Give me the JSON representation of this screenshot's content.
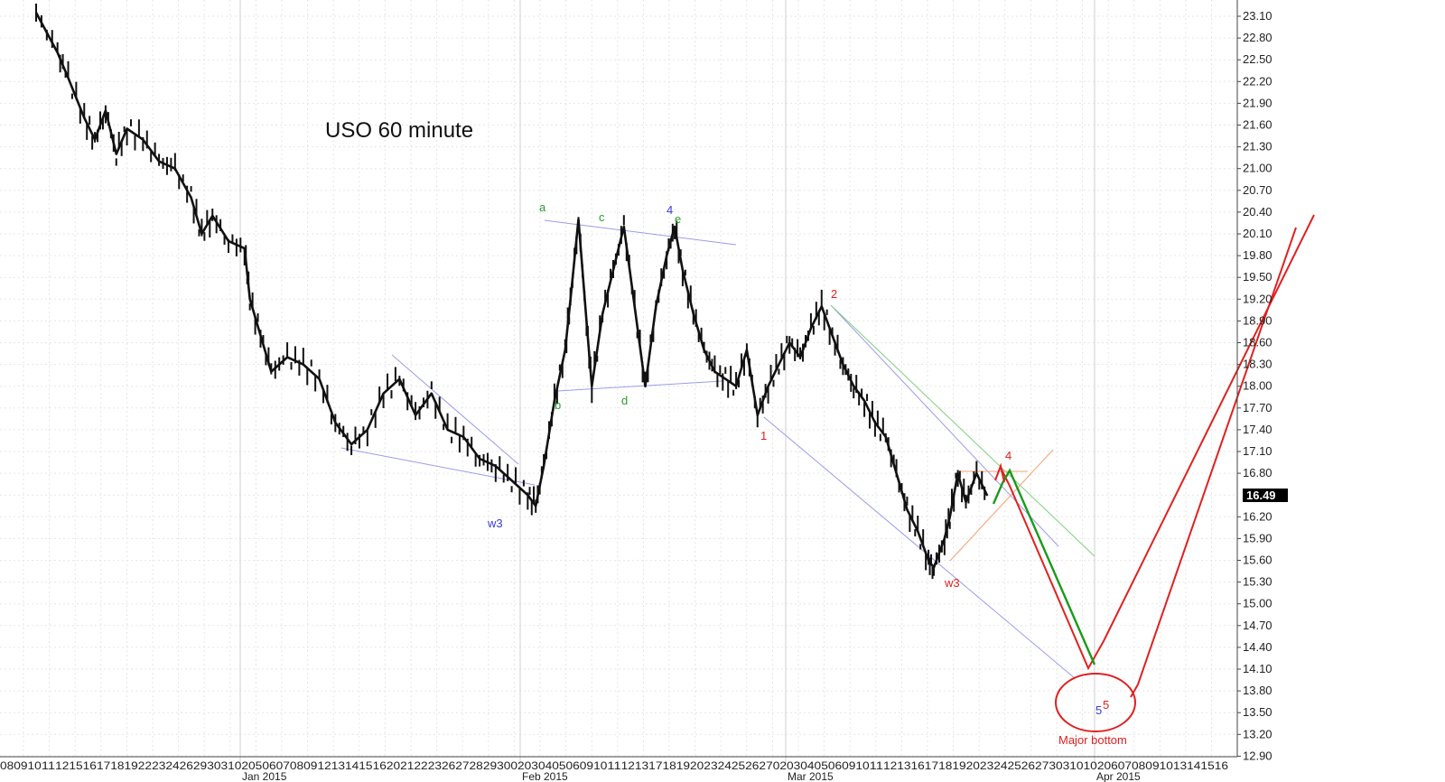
{
  "chart_data": {
    "type": "line",
    "title": "USO 60 minute",
    "last_price": "16.49",
    "y_ticks": [
      "23.10",
      "22.80",
      "22.50",
      "22.20",
      "21.90",
      "21.60",
      "21.30",
      "21.00",
      "20.70",
      "20.40",
      "20.10",
      "19.80",
      "19.50",
      "19.20",
      "18.90",
      "18.60",
      "18.30",
      "18.00",
      "17.70",
      "17.40",
      "17.10",
      "16.80",
      "16.49",
      "16.20",
      "15.90",
      "15.60",
      "15.30",
      "15.00",
      "14.70",
      "14.40",
      "14.10",
      "13.80",
      "13.50",
      "13.20",
      "12.90"
    ],
    "ylim": [
      12.9,
      23.3
    ],
    "x_tick_string": "0809101112151617181922232426293031020506070809121314151620212223262728293002030405060910111213171819202324252627020304050609101112131617181920232425262730310102060708091013141516",
    "x_day_labels": [
      "08",
      "09",
      "10",
      "11",
      "12",
      "15",
      "16",
      "17",
      "18",
      "19",
      "22",
      "23",
      "24",
      "26",
      "29",
      "30",
      "31",
      "02",
      "05",
      "06",
      "07",
      "08",
      "09",
      "12",
      "13",
      "14",
      "15",
      "16",
      "20",
      "21",
      "22",
      "23",
      "26",
      "27",
      "28",
      "29",
      "30",
      "02",
      "03",
      "04",
      "05",
      "06",
      "09",
      "10",
      "11",
      "12",
      "13",
      "17",
      "18",
      "19",
      "20",
      "23",
      "24",
      "25",
      "26",
      "27",
      "02",
      "03",
      "04",
      "05",
      "06",
      "09",
      "10",
      "11",
      "12",
      "13",
      "16",
      "17",
      "18",
      "19",
      "20",
      "23",
      "24",
      "25",
      "26",
      "27",
      "30",
      "31",
      "01",
      "02",
      "06",
      "07",
      "08",
      "09",
      "10",
      "13",
      "14",
      "15",
      "16"
    ],
    "months": [
      "Jan 2015",
      "Feb 2015",
      "Mar 2015",
      "Apr 2015"
    ],
    "grid": true,
    "series": [
      {
        "type": "line",
        "values": [
          [
            0,
            23.15
          ],
          [
            8,
            22.6
          ],
          [
            12,
            22.25
          ],
          [
            18,
            21.7
          ],
          [
            22,
            21.4
          ],
          [
            26,
            21.8
          ],
          [
            30,
            21.2
          ],
          [
            34,
            21.55
          ],
          [
            40,
            21.4
          ],
          [
            46,
            21.1
          ],
          [
            52,
            21.0
          ],
          [
            58,
            20.6
          ],
          [
            62,
            20.1
          ],
          [
            66,
            20.35
          ],
          [
            72,
            20.0
          ],
          [
            78,
            19.9
          ],
          [
            80,
            19.2
          ],
          [
            84,
            18.7
          ],
          [
            88,
            18.2
          ],
          [
            94,
            18.4
          ],
          [
            100,
            18.3
          ],
          [
            106,
            18.1
          ],
          [
            112,
            17.5
          ],
          [
            118,
            17.2
          ],
          [
            124,
            17.4
          ],
          [
            130,
            17.9
          ],
          [
            136,
            18.1
          ],
          [
            142,
            17.6
          ],
          [
            148,
            17.9
          ],
          [
            154,
            17.4
          ],
          [
            160,
            17.3
          ],
          [
            166,
            17.0
          ],
          [
            172,
            16.9
          ],
          [
            178,
            16.7
          ],
          [
            184,
            16.5
          ],
          [
            187,
            16.35
          ],
          [
            190,
            16.9
          ],
          [
            194,
            17.8
          ],
          [
            198,
            18.5
          ],
          [
            200,
            19.2
          ],
          [
            203,
            20.3
          ],
          [
            206,
            18.9
          ],
          [
            208,
            18.0
          ],
          [
            212,
            19.0
          ],
          [
            216,
            19.6
          ],
          [
            220,
            20.2
          ],
          [
            224,
            19.1
          ],
          [
            228,
            18.0
          ],
          [
            232,
            19.1
          ],
          [
            236,
            19.8
          ],
          [
            239,
            20.2
          ],
          [
            242,
            19.6
          ],
          [
            246,
            19.0
          ],
          [
            250,
            18.5
          ],
          [
            254,
            18.2
          ],
          [
            258,
            18.1
          ],
          [
            262,
            18.0
          ],
          [
            266,
            18.5
          ],
          [
            270,
            17.6
          ],
          [
            274,
            18.0
          ],
          [
            278,
            18.3
          ],
          [
            282,
            18.6
          ],
          [
            286,
            18.4
          ],
          [
            290,
            18.8
          ],
          [
            294,
            19.1
          ],
          [
            298,
            18.7
          ],
          [
            302,
            18.3
          ],
          [
            306,
            18.0
          ],
          [
            310,
            17.8
          ],
          [
            314,
            17.5
          ],
          [
            318,
            17.3
          ],
          [
            322,
            16.8
          ],
          [
            326,
            16.3
          ],
          [
            330,
            16.0
          ],
          [
            334,
            15.6
          ],
          [
            336,
            15.5
          ],
          [
            340,
            15.9
          ],
          [
            342,
            16.2
          ],
          [
            345,
            16.8
          ],
          [
            348,
            16.4
          ],
          [
            352,
            16.8
          ],
          [
            356,
            16.49
          ]
        ]
      }
    ],
    "annotations": [
      {
        "label": "a",
        "color": "#2a9d2a"
      },
      {
        "label": "b",
        "color": "#2a9d2a"
      },
      {
        "label": "c",
        "color": "#2a9d2a"
      },
      {
        "label": "d",
        "color": "#2a9d2a"
      },
      {
        "label": "4",
        "color": "#3b3bd6"
      },
      {
        "label": "e",
        "color": "#2a9d2a"
      },
      {
        "label": "w3",
        "color": "#3b3bd6"
      },
      {
        "label": "1",
        "color": "#e02020"
      },
      {
        "label": "2",
        "color": "#e02020"
      },
      {
        "label": "4",
        "color": "#e02020"
      },
      {
        "label": "w3",
        "color": "#e02020"
      },
      {
        "label": "5",
        "color": "#3b3bd6"
      },
      {
        "label": "5",
        "color": "#e02020"
      },
      {
        "label": "Major bottom",
        "color": "#e02020"
      }
    ],
    "colors": {
      "price": "#111111",
      "grid_major": "#cfcfcf",
      "grid_minor": "#e6e6e6",
      "trendline_blue": "#9b9bef",
      "forecast_red": "#e02020",
      "forecast_green": "#1a9a1a",
      "trendline_green": "#7fcf7f",
      "trendline_orange": "#f4a070",
      "price_tag_bg": "#000000"
    }
  }
}
